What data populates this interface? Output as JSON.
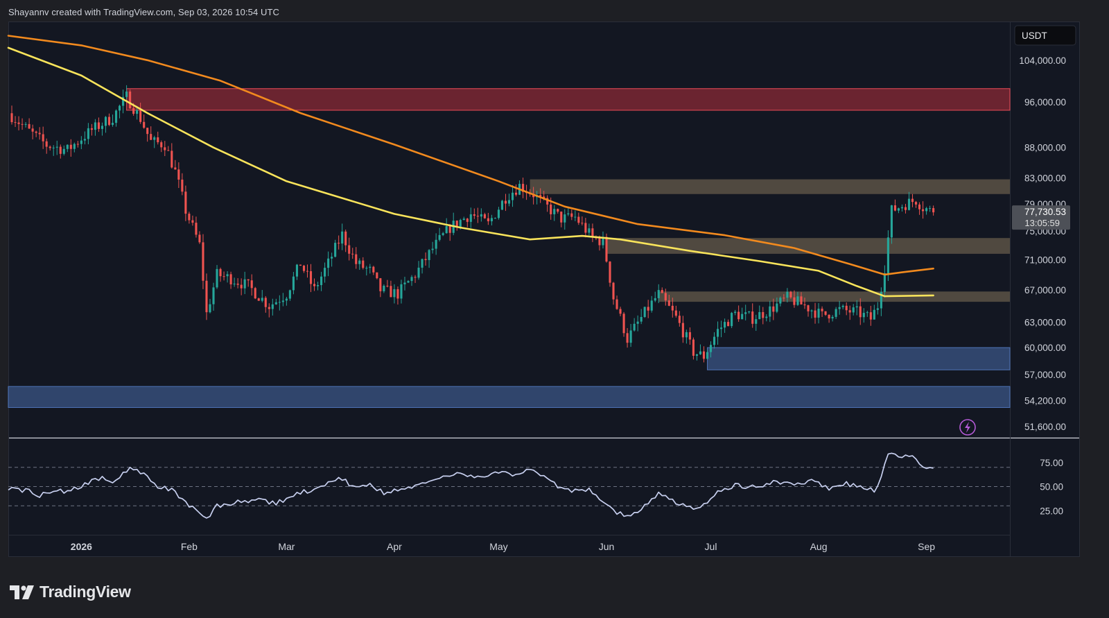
{
  "header": {
    "credit": "Shayannv created with TradingView.com, Sep 03, 2026 10:54 UTC"
  },
  "footer": {
    "brand": "TradingView",
    "logo_icon": "tradingview-logo-icon"
  },
  "colors": {
    "background": "#131722",
    "up": "#26a69a",
    "down": "#ef5350",
    "ma_fast": "#f9e45b",
    "ma_slow": "#f28a1e",
    "rsi": "#c8d0f0",
    "supply_zone": "#b5303c",
    "demand_zone": "#3d5a8c",
    "flip_zone": "#7a6a55"
  },
  "chart_data": [
    {
      "type": "candlestick",
      "quote_currency": "USDT",
      "last_price": "77,730.53",
      "countdown": "13:05:59",
      "y_scale": "log",
      "ylim": [
        50500,
        112000
      ],
      "y_ticks": [
        "104,000.00",
        "96,000.00",
        "88,000.00",
        "83,000.00",
        "79,000.00",
        "75,000.00",
        "71,000.00",
        "67,000.00",
        "63,000.00",
        "60,000.00",
        "57,000.00",
        "54,200.00",
        "51,600.00"
      ],
      "x_tick_labels": [
        {
          "date": "2026-01-01",
          "label": "2026",
          "bold": true
        },
        {
          "date": "2026-02-01",
          "label": "Feb"
        },
        {
          "date": "2026-03-01",
          "label": "Mar"
        },
        {
          "date": "2026-04-01",
          "label": "Apr"
        },
        {
          "date": "2026-05-01",
          "label": "May"
        },
        {
          "date": "2026-06-01",
          "label": "Jun"
        },
        {
          "date": "2026-07-01",
          "label": "Jul"
        },
        {
          "date": "2026-08-01",
          "label": "Aug"
        },
        {
          "date": "2026-09-01",
          "label": "Sep"
        }
      ],
      "x_range": [
        "2025-12-11",
        "2026-09-25"
      ],
      "candles_start": "2025-12-12",
      "close_anchors": [
        [
          "2025-12-12",
          93500
        ],
        [
          "2025-12-17",
          90800
        ],
        [
          "2025-12-22",
          88400
        ],
        [
          "2025-12-28",
          87600
        ],
        [
          "2026-01-04",
          91000
        ],
        [
          "2026-01-10",
          93200
        ],
        [
          "2026-01-14",
          97000
        ],
        [
          "2026-01-18",
          93000
        ],
        [
          "2026-01-21",
          89000
        ],
        [
          "2026-01-25",
          88500
        ],
        [
          "2026-01-28",
          84000
        ],
        [
          "2026-01-31",
          78000
        ],
        [
          "2026-02-04",
          73000
        ],
        [
          "2026-02-06",
          64000
        ],
        [
          "2026-02-09",
          69000
        ],
        [
          "2026-02-13",
          68500
        ],
        [
          "2026-02-18",
          67500
        ],
        [
          "2026-02-24",
          65000
        ],
        [
          "2026-03-01",
          66500
        ],
        [
          "2026-03-05",
          70500
        ],
        [
          "2026-03-09",
          67000
        ],
        [
          "2026-03-13",
          70500
        ],
        [
          "2026-03-17",
          74500
        ],
        [
          "2026-03-21",
          70500
        ],
        [
          "2026-03-25",
          69500
        ],
        [
          "2026-03-28",
          67000
        ],
        [
          "2026-04-02",
          66500
        ],
        [
          "2026-04-07",
          69000
        ],
        [
          "2026-04-12",
          72500
        ],
        [
          "2026-04-17",
          75500
        ],
        [
          "2026-04-23",
          77500
        ],
        [
          "2026-04-28",
          76000
        ],
        [
          "2026-05-03",
          80000
        ],
        [
          "2026-05-07",
          81800
        ],
        [
          "2026-05-11",
          80500
        ],
        [
          "2026-05-15",
          78500
        ],
        [
          "2026-05-19",
          76800
        ],
        [
          "2026-05-23",
          77000
        ],
        [
          "2026-05-28",
          74000
        ],
        [
          "2026-05-31",
          73500
        ],
        [
          "2026-06-03",
          66000
        ],
        [
          "2026-06-07",
          61000
        ],
        [
          "2026-06-11",
          63500
        ],
        [
          "2026-06-16",
          66500
        ],
        [
          "2026-06-21",
          63500
        ],
        [
          "2026-06-26",
          59500
        ],
        [
          "2026-06-29",
          59000
        ],
        [
          "2026-07-03",
          62000
        ],
        [
          "2026-07-08",
          64000
        ],
        [
          "2026-07-13",
          63500
        ],
        [
          "2026-07-18",
          64500
        ],
        [
          "2026-07-23",
          66000
        ],
        [
          "2026-07-28",
          65000
        ],
        [
          "2026-08-02",
          63800
        ],
        [
          "2026-08-07",
          64500
        ],
        [
          "2026-08-12",
          64200
        ],
        [
          "2026-08-16",
          63400
        ],
        [
          "2026-08-18",
          65000
        ],
        [
          "2026-08-20",
          70000
        ],
        [
          "2026-08-22",
          78000
        ],
        [
          "2026-08-26",
          79000
        ],
        [
          "2026-08-29",
          79600
        ],
        [
          "2026-08-31",
          78500
        ],
        [
          "2026-09-03",
          77730
        ]
      ],
      "ma_fast": [
        [
          "2025-12-11",
          106500
        ],
        [
          "2026-01-01",
          101000
        ],
        [
          "2026-01-20",
          94000
        ],
        [
          "2026-02-08",
          88000
        ],
        [
          "2026-03-01",
          82500
        ],
        [
          "2026-04-01",
          77500
        ],
        [
          "2026-04-20",
          75500
        ],
        [
          "2026-05-10",
          73800
        ],
        [
          "2026-05-25",
          74300
        ],
        [
          "2026-06-05",
          73800
        ],
        [
          "2026-06-25",
          72200
        ],
        [
          "2026-07-15",
          70800
        ],
        [
          "2026-08-01",
          69500
        ],
        [
          "2026-08-12",
          67500
        ],
        [
          "2026-08-20",
          66200
        ],
        [
          "2026-09-03",
          66300
        ]
      ],
      "ma_slow": [
        [
          "2025-12-11",
          109000
        ],
        [
          "2026-01-01",
          107000
        ],
        [
          "2026-01-20",
          104000
        ],
        [
          "2026-02-10",
          100000
        ],
        [
          "2026-03-05",
          94000
        ],
        [
          "2026-04-01",
          88500
        ],
        [
          "2026-05-01",
          82500
        ],
        [
          "2026-05-20",
          78600
        ],
        [
          "2026-06-10",
          76000
        ],
        [
          "2026-07-05",
          74400
        ],
        [
          "2026-07-25",
          72600
        ],
        [
          "2026-08-10",
          70400
        ],
        [
          "2026-08-20",
          69000
        ],
        [
          "2026-08-25",
          69300
        ],
        [
          "2026-09-03",
          69800
        ]
      ],
      "zones": [
        {
          "type": "supply",
          "from": "2026-01-14",
          "to": "2026-09-25",
          "low": 94500,
          "high": 98500
        },
        {
          "type": "flip",
          "from": "2026-05-10",
          "to": "2026-09-25",
          "low": 80500,
          "high": 82800
        },
        {
          "type": "flip",
          "from": "2026-06-01",
          "to": "2026-09-25",
          "low": 71800,
          "high": 74000
        },
        {
          "type": "flip",
          "from": "2026-06-16",
          "to": "2026-09-25",
          "low": 65500,
          "high": 66800
        },
        {
          "type": "demand",
          "from": "2026-06-30",
          "to": "2026-09-25",
          "low": 57500,
          "high": 60000
        },
        {
          "type": "demand",
          "from": "2025-12-11",
          "to": "2026-09-25",
          "low": 53500,
          "high": 55700
        }
      ],
      "alert_icon": "lightning-alert-icon"
    },
    {
      "type": "line",
      "indicator": "RSI",
      "ylim": [
        0,
        100
      ],
      "y_ticks": [
        "75.00",
        "50.00",
        "25.00"
      ],
      "guide_levels": [
        70,
        50,
        30
      ],
      "values_anchors": [
        [
          "2025-12-11",
          49
        ],
        [
          "2025-12-16",
          46
        ],
        [
          "2025-12-20",
          41
        ],
        [
          "2025-12-24",
          47
        ],
        [
          "2025-12-28",
          44
        ],
        [
          "2026-01-02",
          52
        ],
        [
          "2026-01-07",
          60
        ],
        [
          "2026-01-11",
          55
        ],
        [
          "2026-01-15",
          70
        ],
        [
          "2026-01-19",
          62
        ],
        [
          "2026-01-23",
          50
        ],
        [
          "2026-01-27",
          46
        ],
        [
          "2026-01-31",
          34
        ],
        [
          "2026-02-03",
          24
        ],
        [
          "2026-02-06",
          16
        ],
        [
          "2026-02-09",
          30
        ],
        [
          "2026-02-14",
          33
        ],
        [
          "2026-02-20",
          36
        ],
        [
          "2026-02-26",
          33
        ],
        [
          "2026-03-02",
          38
        ],
        [
          "2026-03-06",
          45
        ],
        [
          "2026-03-10",
          47
        ],
        [
          "2026-03-16",
          60
        ],
        [
          "2026-03-21",
          48
        ],
        [
          "2026-03-25",
          52
        ],
        [
          "2026-03-29",
          44
        ],
        [
          "2026-04-04",
          47
        ],
        [
          "2026-04-08",
          52
        ],
        [
          "2026-04-14",
          60
        ],
        [
          "2026-04-20",
          63
        ],
        [
          "2026-04-26",
          60
        ],
        [
          "2026-05-01",
          65
        ],
        [
          "2026-05-06",
          62
        ],
        [
          "2026-05-10",
          69
        ],
        [
          "2026-05-16",
          54
        ],
        [
          "2026-05-22",
          45
        ],
        [
          "2026-05-27",
          48
        ],
        [
          "2026-06-01",
          32
        ],
        [
          "2026-06-04",
          23
        ],
        [
          "2026-06-08",
          18
        ],
        [
          "2026-06-12",
          30
        ],
        [
          "2026-06-16",
          44
        ],
        [
          "2026-06-20",
          35
        ],
        [
          "2026-06-24",
          30
        ],
        [
          "2026-06-28",
          28
        ],
        [
          "2026-07-03",
          44
        ],
        [
          "2026-07-08",
          52
        ],
        [
          "2026-07-14",
          49
        ],
        [
          "2026-07-20",
          56
        ],
        [
          "2026-07-25",
          50
        ],
        [
          "2026-07-30",
          58
        ],
        [
          "2026-08-04",
          47
        ],
        [
          "2026-08-09",
          53
        ],
        [
          "2026-08-13",
          50
        ],
        [
          "2026-08-17",
          46
        ],
        [
          "2026-08-19",
          58
        ],
        [
          "2026-08-21",
          85
        ],
        [
          "2026-08-24",
          82
        ],
        [
          "2026-08-28",
          83
        ],
        [
          "2026-08-30",
          72
        ],
        [
          "2026-09-03",
          69
        ]
      ]
    }
  ]
}
